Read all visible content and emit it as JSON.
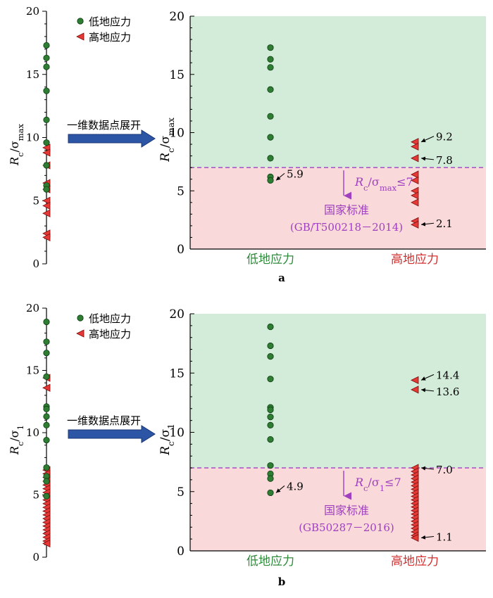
{
  "colors": {
    "low": "#2e7d32",
    "low_edge": "#0b3d12",
    "high": "#e53935",
    "high_edge": "#7a0c0c",
    "green_zone": "#d2ecd9",
    "red_zone": "#f9d9d9",
    "threshold": "#a040c0",
    "arrow": "#2d55a5",
    "low_label": "#2e8b3a",
    "high_label": "#d32f2f"
  },
  "arrow_text": "一维数据点展开",
  "chart_data": [
    {
      "type": "scatter",
      "panel_label": "a",
      "ylabel": "Rc/σmax",
      "ylim": [
        0,
        20
      ],
      "yticks": [
        "0",
        "5",
        "10",
        "15",
        "20"
      ],
      "threshold": 7,
      "categories": [
        "低地应力",
        "高地应力"
      ],
      "legend": [
        "低地应力",
        "高地应力"
      ],
      "series": [
        {
          "name": "低地应力",
          "values": [
            17.3,
            16.3,
            15.6,
            13.7,
            11.4,
            9.6,
            7.8,
            6.2,
            5.9
          ]
        },
        {
          "name": "高地应力",
          "values": [
            9.2,
            8.8,
            7.8,
            6.4,
            5.9,
            5.0,
            4.6,
            4.0,
            2.4,
            2.1
          ]
        }
      ],
      "annotations": [
        {
          "text": "5.9",
          "value": 5.9,
          "series": "低地应力"
        },
        {
          "text": "9.2",
          "value": 9.2,
          "series": "高地应力"
        },
        {
          "text": "7.8",
          "value": 7.8,
          "series": "高地应力"
        },
        {
          "text": "2.1",
          "value": 2.1,
          "series": "高地应力"
        }
      ],
      "threshold_label": "Rc/σmax≤7",
      "standard_label": "国家标准",
      "standard_code": "(GB/T500218－2014)"
    },
    {
      "type": "scatter",
      "panel_label": "b",
      "ylabel": "Rc/σ1",
      "ylim": [
        0,
        20
      ],
      "yticks": [
        "0",
        "5",
        "10",
        "15",
        "20"
      ],
      "threshold": 7,
      "categories": [
        "低地应力",
        "高地应力"
      ],
      "legend": [
        "低地应力",
        "高地应力"
      ],
      "series": [
        {
          "name": "低地应力",
          "values": [
            18.9,
            17.3,
            16.4,
            14.5,
            12.1,
            11.9,
            11.3,
            10.6,
            9.4,
            7.2,
            6.5,
            6.1,
            4.9
          ]
        },
        {
          "name": "高地应力",
          "values": [
            14.4,
            13.6,
            7.0,
            6.7,
            6.4,
            6.1,
            5.8,
            5.5,
            5.2,
            4.9,
            4.6,
            4.3,
            4.0,
            3.7,
            3.4,
            3.1,
            2.8,
            2.5,
            2.2,
            1.9,
            1.6,
            1.3,
            1.1
          ]
        }
      ],
      "annotations": [
        {
          "text": "4.9",
          "value": 4.9,
          "series": "低地应力"
        },
        {
          "text": "14.4",
          "value": 14.4,
          "series": "高地应力"
        },
        {
          "text": "13.6",
          "value": 13.6,
          "series": "高地应力"
        },
        {
          "text": "7.0",
          "value": 7.0,
          "series": "高地应力"
        },
        {
          "text": "1.1",
          "value": 1.1,
          "series": "高地应力"
        }
      ],
      "threshold_label": "Rc/σ1≤7",
      "standard_label": "国家标准",
      "standard_code": "(GB50287－2016)"
    }
  ]
}
